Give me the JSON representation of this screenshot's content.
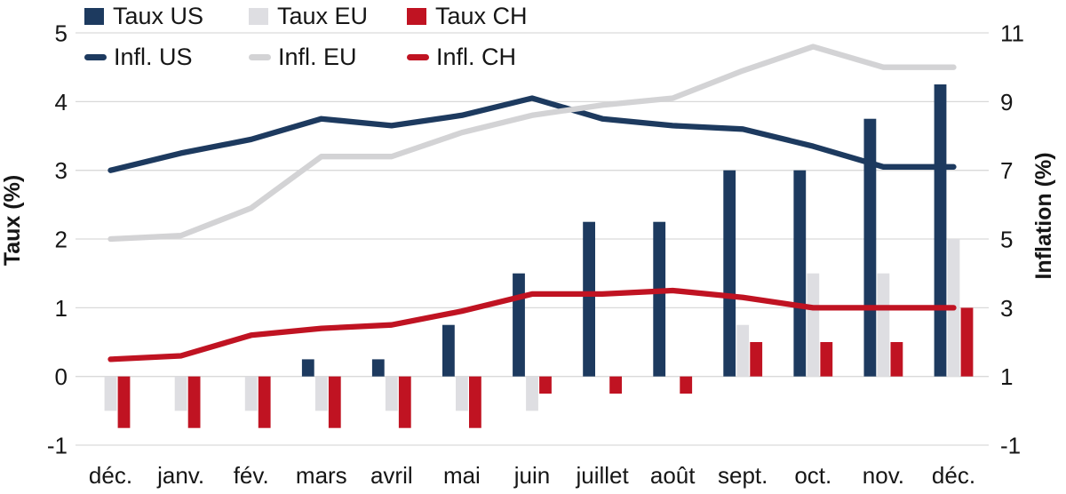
{
  "chart_data": {
    "type": "bar+line",
    "categories": [
      "déc.",
      "janv.",
      "fév.",
      "mars",
      "avril",
      "mai",
      "juin",
      "juillet",
      "août",
      "sept.",
      "oct.",
      "nov.",
      "déc."
    ],
    "bar_series": [
      {
        "name": "Taux US",
        "axis": "left",
        "color_key": "us",
        "values": [
          0,
          0,
          0,
          0.25,
          0.25,
          0.75,
          1.5,
          2.25,
          2.25,
          3.0,
          3.0,
          3.75,
          4.25
        ]
      },
      {
        "name": "Taux EU",
        "axis": "left",
        "color_key": "eu_bar",
        "values": [
          -0.5,
          -0.5,
          -0.5,
          -0.5,
          -0.5,
          -0.5,
          -0.5,
          0,
          0,
          0.75,
          1.5,
          1.5,
          2.0
        ]
      },
      {
        "name": "Taux CH",
        "axis": "left",
        "color_key": "ch",
        "values": [
          -0.75,
          -0.75,
          -0.75,
          -0.75,
          -0.75,
          -0.75,
          -0.25,
          -0.25,
          -0.25,
          0.5,
          0.5,
          0.5,
          1.0
        ]
      }
    ],
    "line_series": [
      {
        "name": "Infl. US",
        "axis": "right",
        "color_key": "us",
        "values": [
          7.0,
          7.5,
          7.9,
          8.5,
          8.3,
          8.6,
          9.1,
          8.5,
          8.3,
          8.2,
          7.7,
          7.1,
          7.1
        ]
      },
      {
        "name": "Infl. EU",
        "axis": "right",
        "color_key": "eu_line",
        "values": [
          5.0,
          5.1,
          5.9,
          7.4,
          7.4,
          8.1,
          8.6,
          8.9,
          9.1,
          9.9,
          10.6,
          10.0,
          10.0
        ]
      },
      {
        "name": "Infl. CH",
        "axis": "right",
        "color_key": "ch",
        "values": [
          1.5,
          1.6,
          2.2,
          2.4,
          2.5,
          2.9,
          3.4,
          3.4,
          3.5,
          3.3,
          3.0,
          3.0,
          3.0
        ]
      }
    ],
    "left_axis": {
      "label": "Taux (%)",
      "ticks": [
        5,
        4,
        3,
        2,
        1,
        0,
        -1
      ],
      "range": [
        -1,
        5
      ]
    },
    "right_axis": {
      "label": "Inflation (%)",
      "ticks": [
        11,
        9,
        7,
        5,
        3,
        1,
        -1
      ],
      "range": [
        -1,
        11
      ]
    },
    "grid": true,
    "legend_position": "top-left"
  },
  "colors": {
    "us": "#1d3a5f",
    "eu_bar": "#dedee2",
    "eu_line": "#d3d3d5",
    "ch": "#c01322",
    "grid": "#d9d9d9",
    "text": "#161616"
  }
}
